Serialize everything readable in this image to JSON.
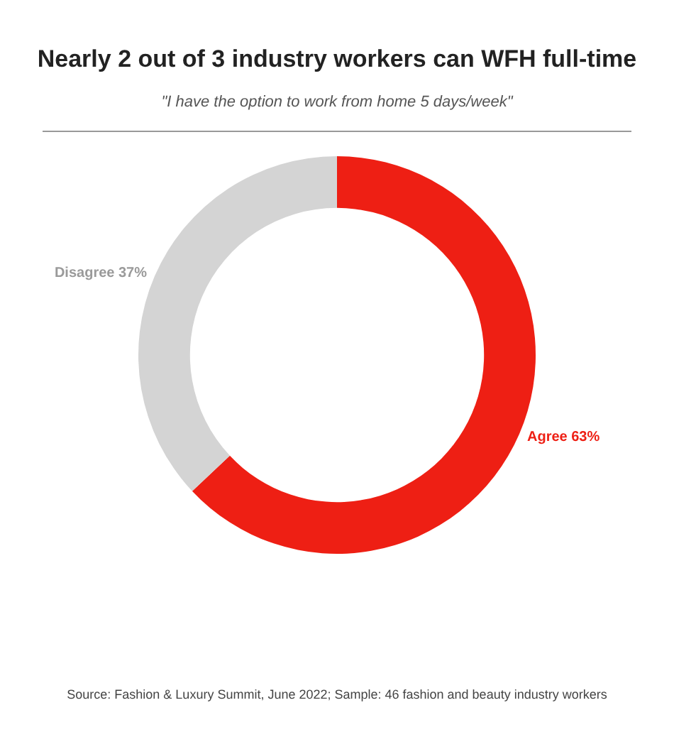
{
  "chart_data": {
    "type": "donut",
    "title": "Nearly 2 out of 3 industry workers can WFH full-time",
    "subtitle": "\"I have the option to work from home 5 days/week\"",
    "categories": [
      "Agree",
      "Disagree"
    ],
    "values": [
      63,
      37
    ],
    "colors": [
      "#ee1f14",
      "#d4d4d4"
    ],
    "value_labels": [
      "63%",
      "37%"
    ],
    "legend": false,
    "annotations": [
      "Source: Fashion & Luxury Summit, June 2022; Sample: 46 fashion and beauty industry workers"
    ]
  }
}
